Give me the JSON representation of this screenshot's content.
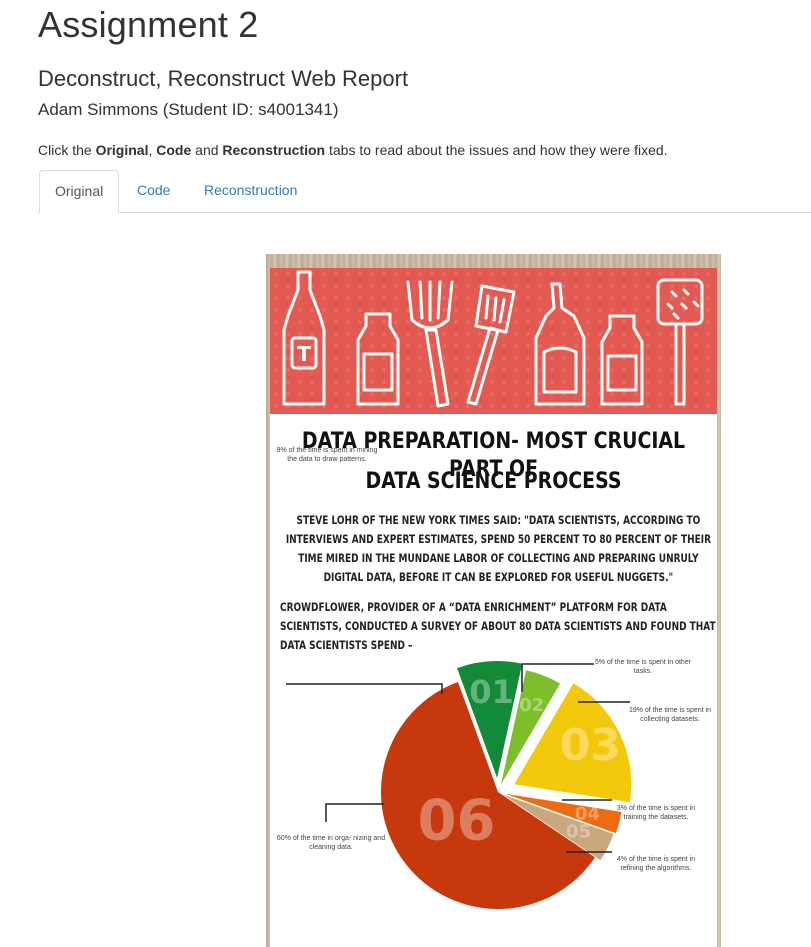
{
  "header": {
    "title": "Assignment 2",
    "subtitle": "Deconstruct, Reconstruct Web Report",
    "author": "Adam Simmons (Student ID: s4001341)"
  },
  "instructions": {
    "prefix": "Click the ",
    "original": "Original",
    "sep1": ", ",
    "code": "Code",
    "sep2": " and ",
    "reconstruction": "Reconstruction",
    "suffix": " tabs to read about the issues and how they were fixed."
  },
  "tabs": [
    {
      "label": "Original",
      "active": true
    },
    {
      "label": "Code",
      "active": false
    },
    {
      "label": "Reconstruction",
      "active": false
    }
  ],
  "infographic": {
    "title_line1": "DATA PREPARATION- MOST CRUCIAL PART OF",
    "title_line2": "DATA SCIENCE PROCESS",
    "quote": "STEVE LOHR OF THE NEW YORK TIMES SAID: \"DATA SCIENTISTS, ACCORDING TO INTERVIEWS AND EXPERT ESTIMATES, SPEND 50 PERCENT TO 80 PERCENT OF THEIR TIME MIRED IN THE MUNDANE LABOR OF COLLECTING AND PREPARING UNRULY DIGITAL DATA, BEFORE IT CAN BE EXPLORED FOR USEFUL NUGGETS.\"",
    "survey": "CROWDFLOWER, PROVIDER OF A “DATA ENRICHMENT” PLATFORM FOR DATA SCIENTISTS, CONDUCTED A SURVEY OF ABOUT 80 DATA SCIENTISTS AND FOUND THAT DATA SCIENTISTS SPEND –",
    "banner_color": "#e35a52",
    "banner_icon_letter": "T"
  },
  "chart_data": {
    "type": "pie",
    "categories": [
      "01",
      "02",
      "03",
      "04",
      "05",
      "06"
    ],
    "values": [
      9,
      5,
      19,
      3,
      4,
      60
    ],
    "colors": [
      "#138a37",
      "#7cbf2a",
      "#f3c70a",
      "#ee6b12",
      "#c9a77f",
      "#c7380d"
    ],
    "annotations": [
      "9% of the time is spent in mining the data to draw patterns.",
      "5% of the time is spent in other tasks.",
      "19% of the time is spent in collecting datasets.",
      "3% of the time is spent in training the datasets.",
      "4% of the time is spent in refining the algorithms.",
      "60% of the time in orga- nizing and cleaning data."
    ]
  }
}
